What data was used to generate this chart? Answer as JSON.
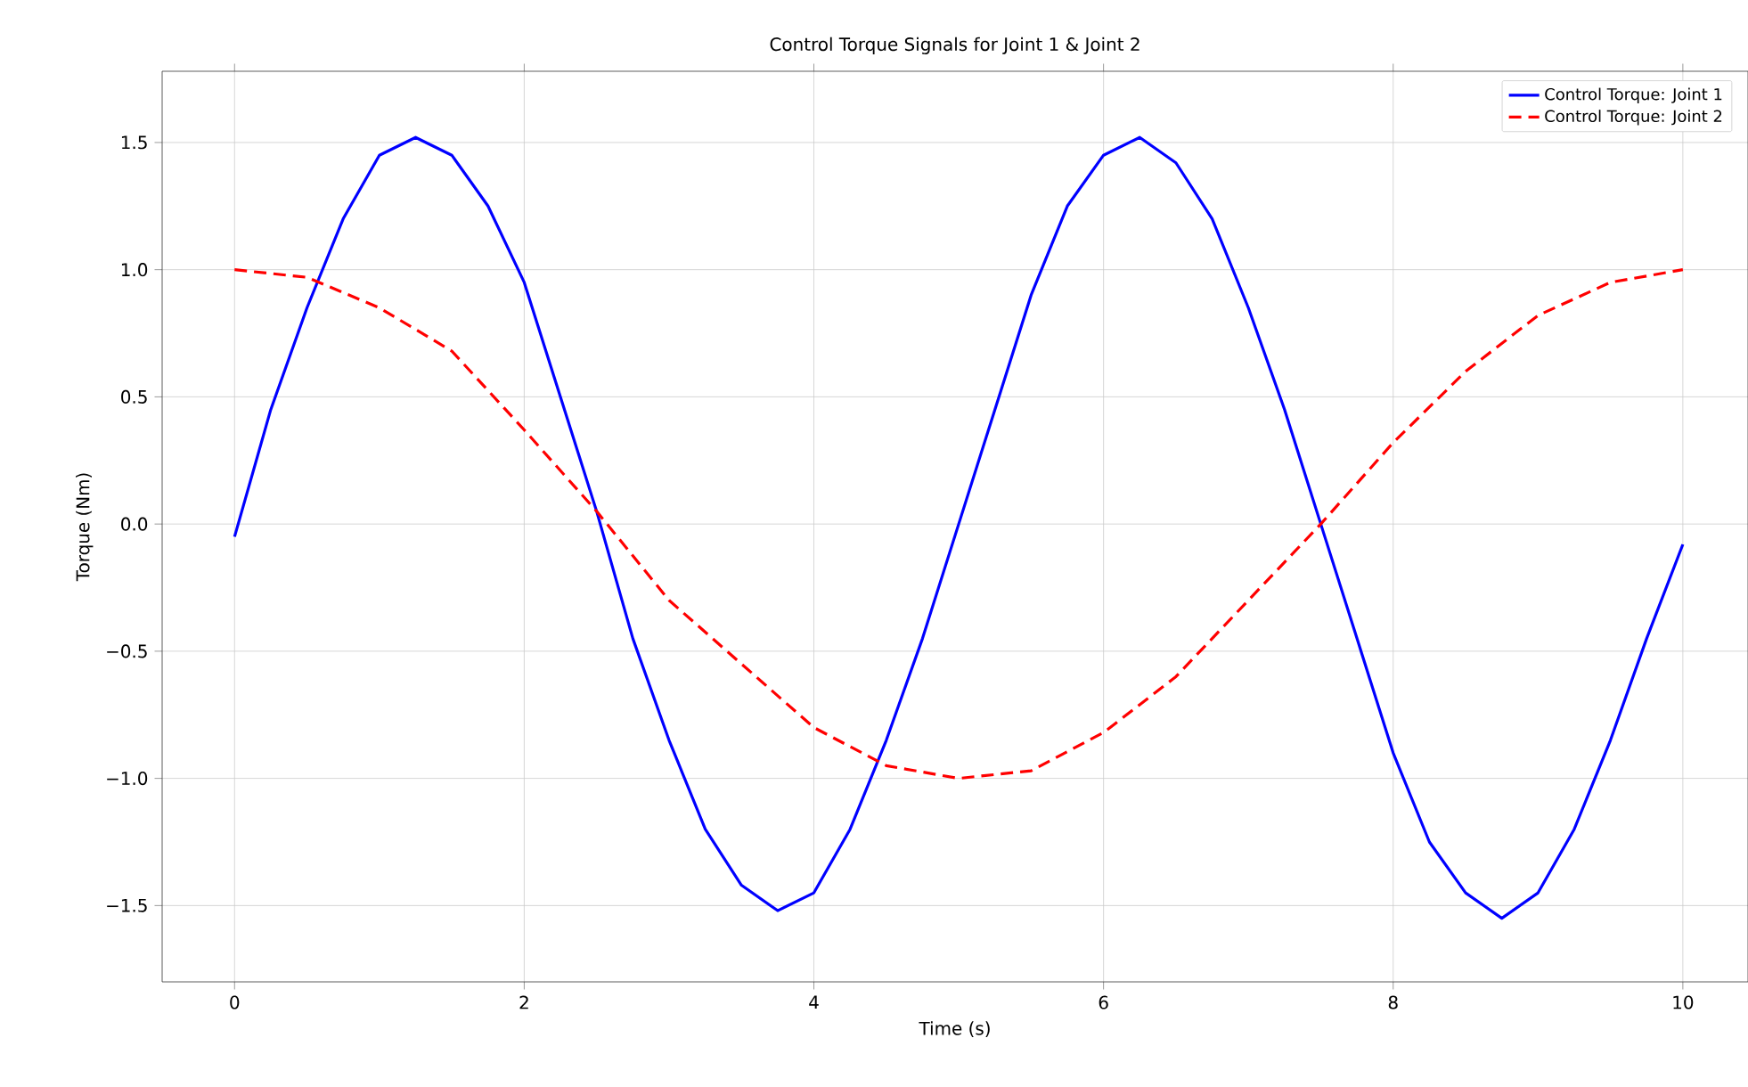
{
  "chart_data": {
    "type": "line",
    "title": "Control Torque Signals for Joint 1 & Joint 2",
    "xlabel": "Time (s)",
    "ylabel": "Torque (Nm)",
    "x": [
      0,
      0.25,
      0.5,
      0.75,
      1.0,
      1.25,
      1.5,
      1.75,
      2.0,
      2.25,
      2.5,
      2.75,
      3.0,
      3.25,
      3.5,
      3.75,
      4.0,
      4.25,
      4.5,
      4.75,
      5.0,
      5.25,
      5.5,
      5.75,
      6.0,
      6.25,
      6.5,
      6.75,
      7.0,
      7.25,
      7.5,
      7.75,
      8.0,
      8.25,
      8.5,
      8.75,
      9.0,
      9.25,
      9.5,
      9.75,
      10.0
    ],
    "series": [
      {
        "name": "Control Torque: Joint 1",
        "color": "#0000ff",
        "line_style": "solid",
        "values": [
          -0.05,
          0.45,
          0.85,
          1.2,
          1.45,
          1.52,
          1.45,
          1.25,
          0.95,
          0.5,
          0.05,
          -0.45,
          -0.85,
          -1.2,
          -1.42,
          -1.52,
          -1.45,
          -1.2,
          -0.85,
          -0.45,
          0.0,
          0.45,
          0.9,
          1.25,
          1.45,
          1.52,
          1.42,
          1.2,
          0.85,
          0.45,
          0.0,
          -0.45,
          -0.9,
          -1.25,
          -1.45,
          -1.55,
          -1.45,
          -1.2,
          -0.85,
          -0.45,
          -0.08
        ]
      },
      {
        "name": "Control Torque: Joint 2",
        "color": "#ff0000",
        "line_style": "dashed",
        "x": [
          0,
          0.5,
          1.0,
          1.5,
          2.0,
          2.5,
          3.0,
          3.5,
          4.0,
          4.5,
          5.0,
          5.5,
          6.0,
          6.5,
          7.0,
          7.5,
          8.0,
          8.5,
          9.0,
          9.5,
          10.0
        ],
        "values": [
          1.0,
          0.97,
          0.85,
          0.68,
          0.37,
          0.05,
          -0.3,
          -0.55,
          -0.8,
          -0.95,
          -1.0,
          -0.97,
          -0.82,
          -0.6,
          -0.3,
          0.0,
          0.32,
          0.6,
          0.82,
          0.95,
          1.0
        ]
      }
    ],
    "xlim": [
      -0.5,
      10.45
    ],
    "ylim": [
      -1.8,
      1.78
    ],
    "xticks": [
      0,
      2,
      4,
      6,
      8,
      10
    ],
    "yticks": [
      {
        "value": -1.5,
        "label": "−1.5"
      },
      {
        "value": -1.0,
        "label": "−1.0"
      },
      {
        "value": -0.5,
        "label": "−0.5"
      },
      {
        "value": 0.0,
        "label": "0.0"
      },
      {
        "value": 0.5,
        "label": "0.5"
      },
      {
        "value": 1.0,
        "label": "1.0"
      },
      {
        "value": 1.5,
        "label": "1.5"
      }
    ],
    "grid": true,
    "legend": "top right"
  }
}
